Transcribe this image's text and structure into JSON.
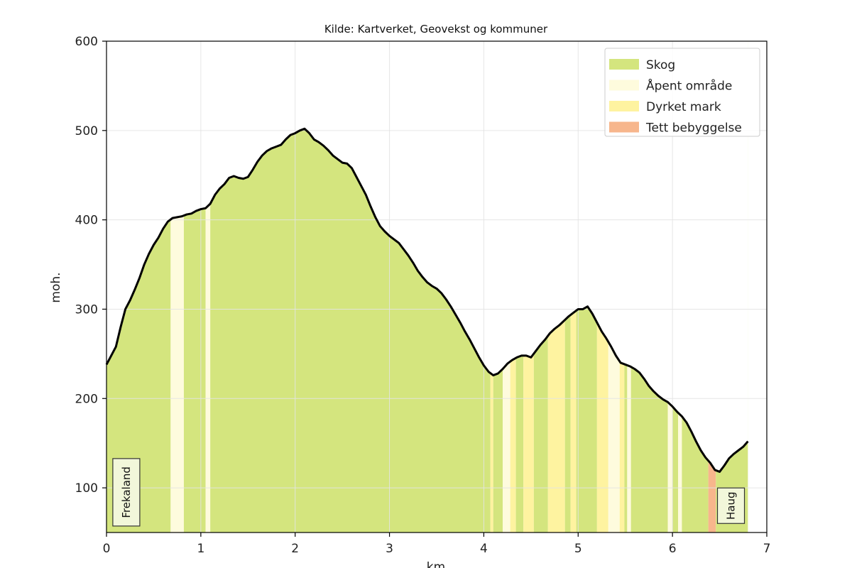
{
  "chart_data": {
    "type": "area",
    "title": "Kilde: Kartverket, Geovekst og kommuner",
    "xlabel": "km",
    "ylabel": "moh.",
    "xlim": [
      0,
      7
    ],
    "ylim": [
      50,
      600
    ],
    "xticks": [
      0,
      1,
      2,
      3,
      4,
      5,
      6,
      7
    ],
    "yticks": [
      100,
      200,
      300,
      400,
      500,
      600
    ],
    "grid": true,
    "legend_position": "top-right",
    "legend": [
      {
        "name": "Skog",
        "color": "#d4e57e"
      },
      {
        "name": "Åpent område",
        "color": "#fefbdd"
      },
      {
        "name": "Dyrket mark",
        "color": "#fef3a0"
      },
      {
        "name": "Tett bebyggelse",
        "color": "#f7b68c"
      }
    ],
    "profile": {
      "x": [
        0,
        0.04,
        0.1,
        0.15,
        0.2,
        0.25,
        0.3,
        0.35,
        0.4,
        0.45,
        0.5,
        0.55,
        0.6,
        0.65,
        0.7,
        0.75,
        0.8,
        0.85,
        0.9,
        0.95,
        1.0,
        1.05,
        1.1,
        1.15,
        1.2,
        1.25,
        1.3,
        1.35,
        1.4,
        1.45,
        1.5,
        1.55,
        1.6,
        1.65,
        1.7,
        1.75,
        1.8,
        1.85,
        1.9,
        1.95,
        2.0,
        2.05,
        2.1,
        2.15,
        2.2,
        2.25,
        2.3,
        2.35,
        2.4,
        2.45,
        2.5,
        2.55,
        2.6,
        2.65,
        2.7,
        2.75,
        2.8,
        2.85,
        2.9,
        2.95,
        3.0,
        3.05,
        3.1,
        3.15,
        3.2,
        3.25,
        3.3,
        3.35,
        3.4,
        3.45,
        3.5,
        3.55,
        3.6,
        3.65,
        3.7,
        3.75,
        3.8,
        3.85,
        3.9,
        3.95,
        4.0,
        4.05,
        4.1,
        4.15,
        4.2,
        4.25,
        4.3,
        4.35,
        4.4,
        4.45,
        4.5,
        4.55,
        4.6,
        4.65,
        4.7,
        4.75,
        4.8,
        4.85,
        4.9,
        4.95,
        5.0,
        5.05,
        5.1,
        5.15,
        5.2,
        5.25,
        5.3,
        5.35,
        5.4,
        5.45,
        5.5,
        5.55,
        5.6,
        5.65,
        5.7,
        5.75,
        5.8,
        5.85,
        5.9,
        5.95,
        6.0,
        6.05,
        6.1,
        6.15,
        6.2,
        6.25,
        6.3,
        6.35,
        6.4,
        6.45,
        6.5,
        6.55,
        6.6,
        6.65,
        6.7,
        6.75,
        6.8
      ],
      "y": [
        238,
        246,
        258,
        280,
        300,
        310,
        322,
        335,
        350,
        362,
        372,
        380,
        390,
        398,
        402,
        403,
        404,
        406,
        407,
        410,
        412,
        413,
        418,
        428,
        435,
        440,
        447,
        449,
        447,
        446,
        448,
        456,
        465,
        472,
        477,
        480,
        482,
        484,
        490,
        495,
        497,
        500,
        502,
        497,
        490,
        487,
        483,
        478,
        472,
        468,
        464,
        463,
        458,
        448,
        438,
        428,
        415,
        403,
        393,
        387,
        382,
        378,
        374,
        367,
        360,
        352,
        343,
        336,
        330,
        326,
        323,
        318,
        311,
        303,
        294,
        285,
        275,
        266,
        256,
        246,
        237,
        230,
        226,
        228,
        233,
        239,
        243,
        246,
        248,
        248,
        246,
        253,
        260,
        266,
        273,
        278,
        282,
        287,
        292,
        296,
        300,
        300,
        303,
        295,
        285,
        275,
        267,
        258,
        248,
        240,
        238,
        236,
        233,
        229,
        222,
        214,
        208,
        203,
        199,
        196,
        191,
        185,
        180,
        173,
        163,
        152,
        142,
        134,
        128,
        120,
        118,
        125,
        133,
        138,
        142,
        146,
        152
      ]
    },
    "landcover": [
      {
        "type": "Skog",
        "x0": 0.0,
        "x1": 0.68
      },
      {
        "type": "Åpent område",
        "x0": 0.68,
        "x1": 0.82
      },
      {
        "type": "Skog",
        "x0": 0.82,
        "x1": 1.05
      },
      {
        "type": "Åpent område",
        "x0": 1.05,
        "x1": 1.1
      },
      {
        "type": "Skog",
        "x0": 1.1,
        "x1": 4.07
      },
      {
        "type": "Dyrket mark",
        "x0": 4.07,
        "x1": 4.1
      },
      {
        "type": "Skog",
        "x0": 4.1,
        "x1": 4.2
      },
      {
        "type": "Åpent område",
        "x0": 4.2,
        "x1": 4.28
      },
      {
        "type": "Dyrket mark",
        "x0": 4.28,
        "x1": 4.34
      },
      {
        "type": "Skog",
        "x0": 4.34,
        "x1": 4.42
      },
      {
        "type": "Dyrket mark",
        "x0": 4.42,
        "x1": 4.53
      },
      {
        "type": "Skog",
        "x0": 4.53,
        "x1": 4.68
      },
      {
        "type": "Dyrket mark",
        "x0": 4.68,
        "x1": 4.86
      },
      {
        "type": "Skog",
        "x0": 4.86,
        "x1": 4.92
      },
      {
        "type": "Dyrket mark",
        "x0": 4.92,
        "x1": 4.98
      },
      {
        "type": "Skog",
        "x0": 4.98,
        "x1": 5.2
      },
      {
        "type": "Dyrket mark",
        "x0": 5.2,
        "x1": 5.32
      },
      {
        "type": "Åpent område",
        "x0": 5.32,
        "x1": 5.44
      },
      {
        "type": "Dyrket mark",
        "x0": 5.44,
        "x1": 5.49
      },
      {
        "type": "Skog",
        "x0": 5.49,
        "x1": 5.52
      },
      {
        "type": "Åpent område",
        "x0": 5.52,
        "x1": 5.56
      },
      {
        "type": "Skog",
        "x0": 5.56,
        "x1": 5.95
      },
      {
        "type": "Åpent område",
        "x0": 5.95,
        "x1": 6.0
      },
      {
        "type": "Skog",
        "x0": 6.0,
        "x1": 6.06
      },
      {
        "type": "Åpent område",
        "x0": 6.06,
        "x1": 6.1
      },
      {
        "type": "Skog",
        "x0": 6.1,
        "x1": 6.38
      },
      {
        "type": "Tett bebyggelse",
        "x0": 6.38,
        "x1": 6.46
      },
      {
        "type": "Skog",
        "x0": 6.46,
        "x1": 6.8
      }
    ],
    "place_labels": [
      {
        "text": "Frekaland",
        "x": 0.21,
        "y": 95
      },
      {
        "text": "Haug",
        "x": 6.62,
        "y": 80
      }
    ]
  }
}
